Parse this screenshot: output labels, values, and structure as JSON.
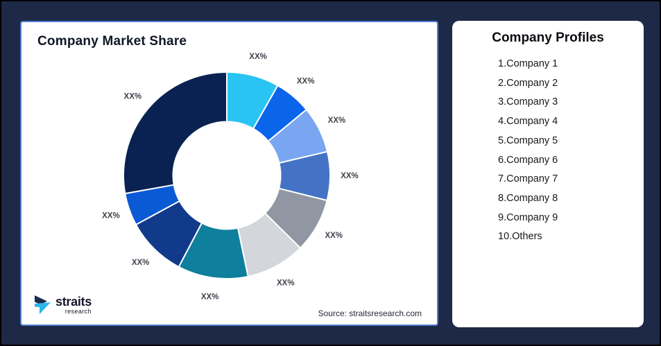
{
  "window": {
    "background": "#1d2946",
    "outer_border": "#000000"
  },
  "market_share_card": {
    "title": "Company Market Share",
    "source_text": "Source: straitsresearch.com",
    "border_color": "#4f7cd2"
  },
  "logo": {
    "brand": "straits",
    "brand_sub": "research",
    "icon_navy": "#1b2b4d",
    "icon_cyan": "#2bb7e8"
  },
  "profiles_card": {
    "title": "Company Profiles",
    "items": [
      "1.Company 1",
      "2.Company 2",
      "3.Company 3",
      "4.Company 4",
      "5.Company 5",
      "6.Company 6",
      "7.Company 7",
      "8.Company 8",
      "9.Company 9",
      "10.Others"
    ]
  },
  "chart_data": {
    "type": "pie",
    "subtype": "donut",
    "title": "Company Market Share",
    "unit": "percent_placeholder",
    "start_angle_deg": 0,
    "direction": "clockwise",
    "label_color": "#3c414b",
    "separator_color": "#ffffff",
    "segments": [
      {
        "label": "XX%",
        "value": 8.2,
        "color": "#29C4F3"
      },
      {
        "label": "XX%",
        "value": 5.8,
        "color": "#0B65EB"
      },
      {
        "label": "XX%",
        "value": 7.3,
        "color": "#7AA5F1"
      },
      {
        "label": "XX%",
        "value": 7.6,
        "color": "#4473C5"
      },
      {
        "label": "XX%",
        "value": 8.5,
        "color": "#9097A2"
      },
      {
        "label": "XX%",
        "value": 9.3,
        "color": "#D3D6DB"
      },
      {
        "label": "XX%",
        "value": 11.0,
        "color": "#0E7F9D"
      },
      {
        "label": "XX%",
        "value": 9.4,
        "color": "#113A8B"
      },
      {
        "label": "XX%",
        "value": 5.1,
        "color": "#0A5AD6"
      },
      {
        "label": "XX%",
        "value": 27.8,
        "color": "#0A2252"
      }
    ]
  }
}
